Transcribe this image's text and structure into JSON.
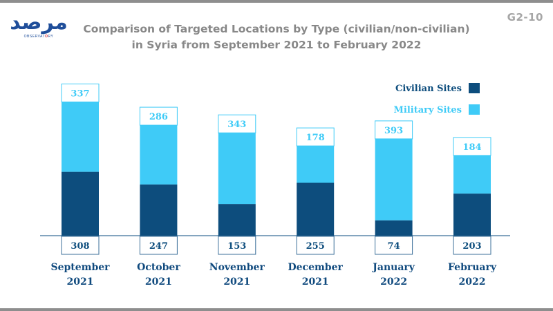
{
  "logo": {
    "script": "مرصد",
    "sub_prefix": "OBSERVAT",
    "sub_highlight": "O",
    "sub_suffix": "RY"
  },
  "code": "G2-10",
  "title_line1": "Comparison of Targeted Locations by Type (civilian/non-civilian)",
  "title_line2": "in Syria from September 2021 to February 2022",
  "colors": {
    "civilian": "#0d4d7d",
    "military": "#3fcbf7",
    "axis": "#3b6f99",
    "civilian_text": "#0d4d7d",
    "military_text": "#3fcbf7"
  },
  "chart_data": {
    "type": "bar",
    "stacked": true,
    "title": "Comparison of Targeted Locations by Type (civilian/non-civilian) in Syria from September 2021 to February 2022",
    "categories": [
      [
        "September",
        "2021"
      ],
      [
        "October",
        "2021"
      ],
      [
        "November",
        "2021"
      ],
      [
        "December",
        "2021"
      ],
      [
        "January",
        "2022"
      ],
      [
        "February",
        "2022"
      ]
    ],
    "series": [
      {
        "name": "Civilian Sites",
        "values": [
          308,
          247,
          153,
          255,
          74,
          203
        ]
      },
      {
        "name": "Military Sites",
        "values": [
          337,
          286,
          343,
          178,
          393,
          184
        ]
      }
    ],
    "legend": "top-right",
    "grid": false
  }
}
